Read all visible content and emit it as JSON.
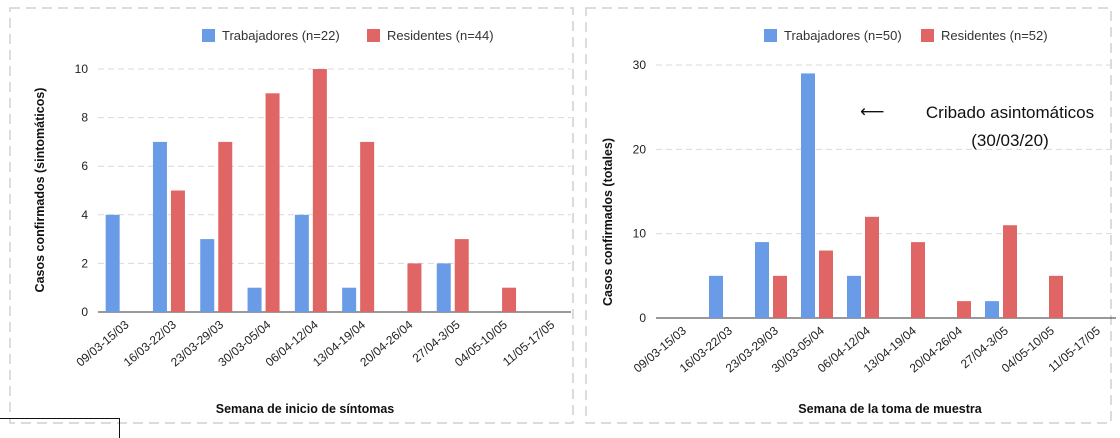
{
  "colors": {
    "workers": "#6a9be6",
    "residents": "#e06666",
    "frame": "#d0d0d0",
    "grid": "#d9d9d9"
  },
  "chart_data": [
    {
      "type": "bar",
      "title": "",
      "xlabel": "Semana de inicio de síntomas",
      "ylabel": "Casos confirmados (sintomáticos)",
      "ylim": [
        0,
        10
      ],
      "yticks": [
        0,
        2,
        4,
        6,
        8,
        10
      ],
      "grid": true,
      "legend_position": "top-center",
      "categories": [
        "09/03-15/03",
        "16/03-22/03",
        "23/03-29/03",
        "30/03-05/04",
        "06/04-12/04",
        "13/04-19/04",
        "20/04-26/04",
        "27/04-3/05",
        "04/05-10/05",
        "11/05-17/05"
      ],
      "series": [
        {
          "name": "Trabajadores (n=22)",
          "color": "#6a9be6",
          "values": [
            4,
            7,
            3,
            1,
            4,
            1,
            0,
            2,
            0,
            0
          ]
        },
        {
          "name": "Residentes (n=44)",
          "color": "#e06666",
          "values": [
            0,
            5,
            7,
            9,
            10,
            7,
            2,
            3,
            1,
            0
          ]
        }
      ]
    },
    {
      "type": "bar",
      "title": "",
      "xlabel": "Semana de la toma de muestra",
      "ylabel": "Casos confirmados (totales)",
      "ylim": [
        0,
        30
      ],
      "yticks": [
        0,
        10,
        20,
        30
      ],
      "grid": true,
      "legend_position": "top-center",
      "categories": [
        "09/03-15/03",
        "16/03-22/03",
        "23/03-29/03",
        "30/03-05/04",
        "06/04-12/04",
        "13/04-19/04",
        "20/04-26/04",
        "27/04-3/05",
        "04/05-10/05",
        "11/05-17/05"
      ],
      "series": [
        {
          "name": "Trabajadores (n=50)",
          "color": "#6a9be6",
          "values": [
            0,
            5,
            9,
            29,
            5,
            0,
            0,
            2,
            0,
            0
          ]
        },
        {
          "name": "Residentes (n=52)",
          "color": "#e06666",
          "values": [
            0,
            0,
            5,
            8,
            12,
            9,
            2,
            11,
            5,
            0
          ]
        }
      ],
      "annotation": {
        "arrow": "⟵",
        "line1": "Cribado asintomáticos",
        "line2": "(30/03/20)"
      }
    }
  ]
}
